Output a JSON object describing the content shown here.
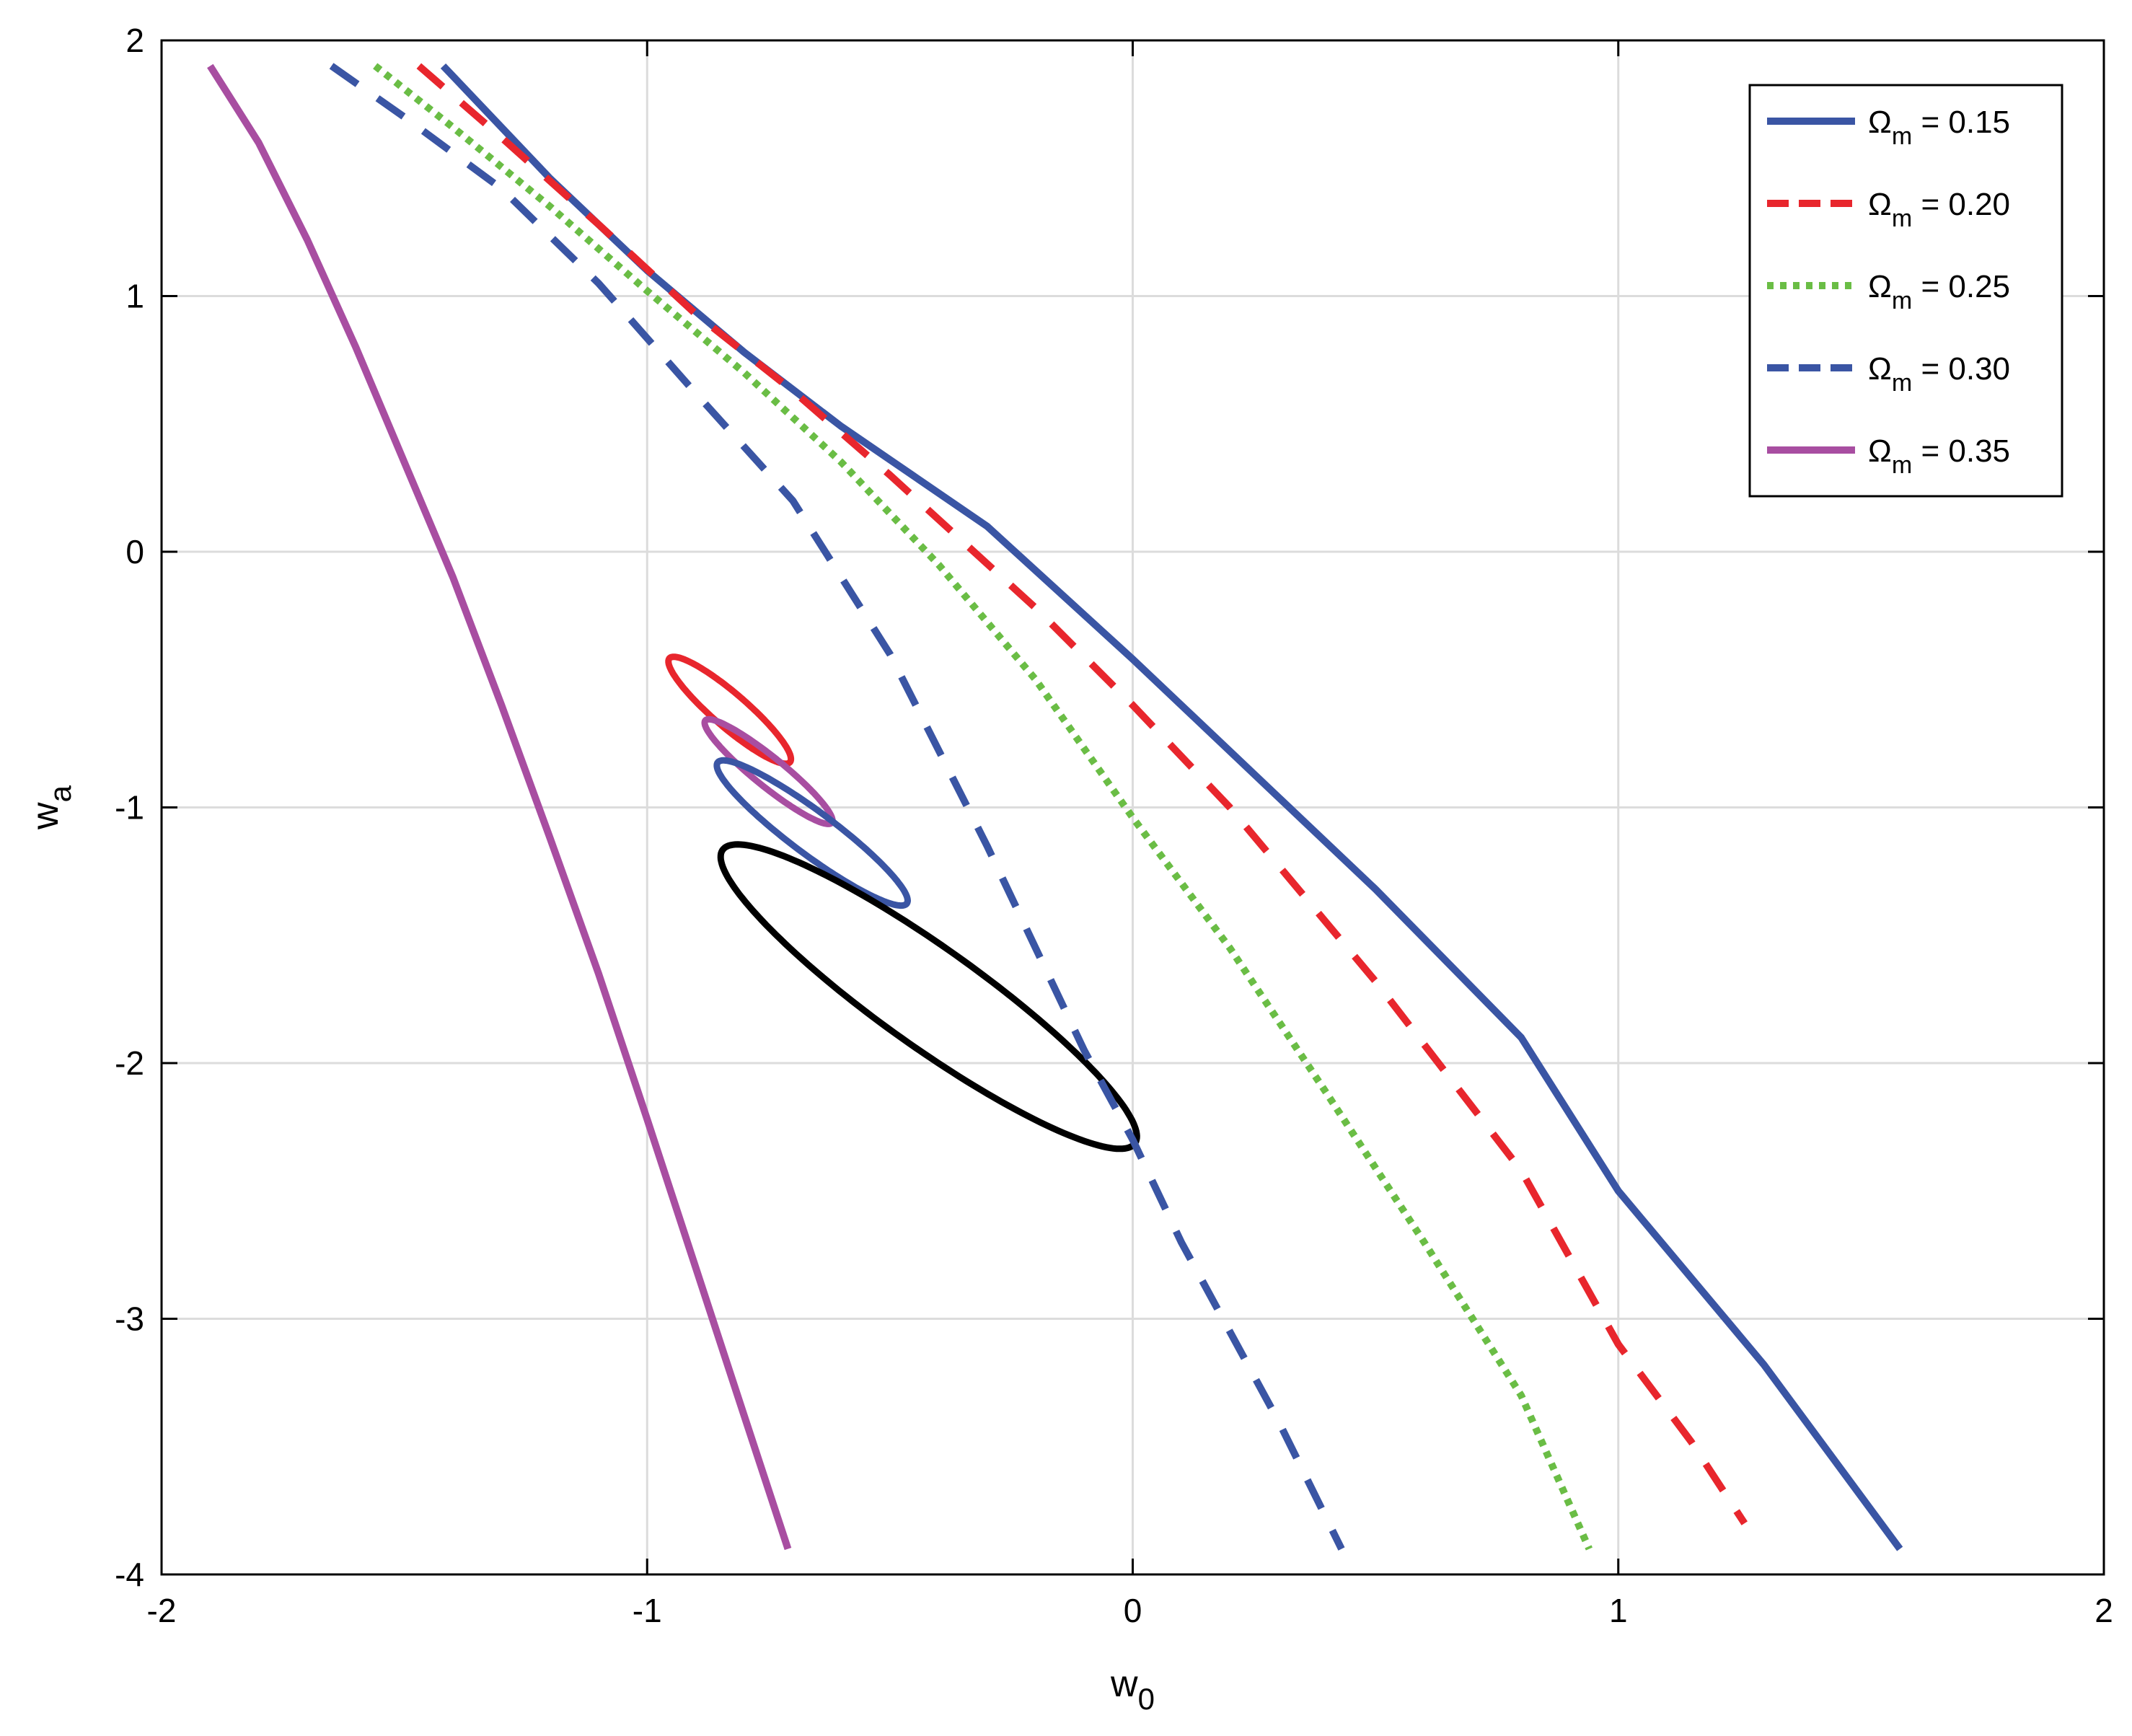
{
  "chart_data": {
    "type": "line",
    "title": "",
    "xlabel": {
      "main": "w",
      "sub": "0"
    },
    "ylabel": {
      "main": "w",
      "sub": "a"
    },
    "xlim": [
      -2,
      2
    ],
    "ylim": [
      -4,
      2
    ],
    "xticks": [
      -2,
      -1,
      0,
      1,
      2
    ],
    "yticks": [
      -4,
      -3,
      -2,
      -1,
      0,
      1,
      2
    ],
    "xtick_labels": [
      "-2",
      "-1",
      "0",
      "1",
      "2"
    ],
    "ytick_labels": [
      "-4",
      "-3",
      "-2",
      "-1",
      "0",
      "1",
      "2"
    ],
    "grid": true,
    "legend_position": "top-right",
    "series": [
      {
        "name": "Ωm = 0.15",
        "legend": {
          "symbol": "Ω",
          "sub": "m",
          "rest": " = 0.15"
        },
        "color": "#3a55a4",
        "style": "solid",
        "x": [
          -1.42,
          -1.2,
          -1.0,
          -0.8,
          -0.6,
          -0.3,
          0.0,
          0.2,
          0.5,
          0.8,
          1.0,
          1.3,
          1.58
        ],
        "y": [
          1.9,
          1.46,
          1.1,
          0.78,
          0.49,
          0.1,
          -0.42,
          -0.78,
          -1.32,
          -1.9,
          -2.5,
          -3.18,
          -3.9
        ]
      },
      {
        "name": "Ωm = 0.20",
        "legend": {
          "symbol": "Ω",
          "sub": "m",
          "rest": " = 0.20"
        },
        "color": "#e8262d",
        "style": "dashed",
        "x": [
          -1.47,
          -1.3,
          -1.1,
          -0.9,
          -0.7,
          -0.5,
          -0.2,
          0.0,
          0.2,
          0.5,
          0.8,
          1.0,
          1.15,
          1.26
        ],
        "y": [
          1.9,
          1.62,
          1.28,
          0.93,
          0.63,
          0.3,
          -0.22,
          -0.6,
          -1.0,
          -1.68,
          -2.42,
          -3.1,
          -3.48,
          -3.8
        ]
      },
      {
        "name": "Ωm = 0.25",
        "legend": {
          "symbol": "Ω",
          "sub": "m",
          "rest": " = 0.25"
        },
        "color": "#6abd45",
        "style": "dotted",
        "x": [
          -1.56,
          -1.4,
          -1.2,
          -1.0,
          -0.8,
          -0.6,
          -0.4,
          -0.2,
          0.0,
          0.2,
          0.4,
          0.6,
          0.8,
          0.94
        ],
        "y": [
          1.9,
          1.66,
          1.35,
          1.02,
          0.7,
          0.35,
          -0.05,
          -0.5,
          -1.04,
          -1.55,
          -2.12,
          -2.7,
          -3.3,
          -3.9
        ]
      },
      {
        "name": "Ωm = 0.30",
        "legend": {
          "symbol": "Ω",
          "sub": "m",
          "rest": " = 0.30"
        },
        "color": "#3a55a4",
        "style": "dashed",
        "x": [
          -1.65,
          -1.5,
          -1.3,
          -1.1,
          -0.9,
          -0.7,
          -0.5,
          -0.3,
          -0.1,
          0.0,
          0.1,
          0.3,
          0.43
        ],
        "y": [
          1.9,
          1.7,
          1.42,
          1.05,
          0.62,
          0.2,
          -0.4,
          -1.15,
          -1.95,
          -2.3,
          -2.7,
          -3.4,
          -3.9
        ]
      },
      {
        "name": "Ωm = 0.35",
        "legend": {
          "symbol": "Ω",
          "sub": "m",
          "rest": " = 0.35"
        },
        "color": "#a84ea1",
        "style": "solid",
        "x": [
          -1.9,
          -1.8,
          -1.7,
          -1.6,
          -1.5,
          -1.4,
          -1.3,
          -1.2,
          -1.1,
          -1.0,
          -0.9,
          -0.8,
          -0.71
        ],
        "y": [
          1.9,
          1.6,
          1.22,
          0.8,
          0.35,
          -0.1,
          -0.6,
          -1.12,
          -1.65,
          -2.22,
          -2.8,
          -3.38,
          -3.9
        ]
      }
    ],
    "ellipses": [
      {
        "color": "#e8262d",
        "cx": -0.83,
        "cy": -0.62,
        "angle_deg": 60,
        "a": 0.24,
        "b": 0.045
      },
      {
        "color": "#a84ea1",
        "cx": -0.75,
        "cy": -0.86,
        "angle_deg": 58,
        "a": 0.24,
        "b": 0.04
      },
      {
        "color": "#3a55a4",
        "cx": -0.66,
        "cy": -1.1,
        "angle_deg": 56,
        "a": 0.34,
        "b": 0.06
      },
      {
        "color": "#000000",
        "cx": -0.42,
        "cy": -1.74,
        "angle_deg": 55,
        "a": 0.72,
        "b": 0.14
      }
    ]
  }
}
